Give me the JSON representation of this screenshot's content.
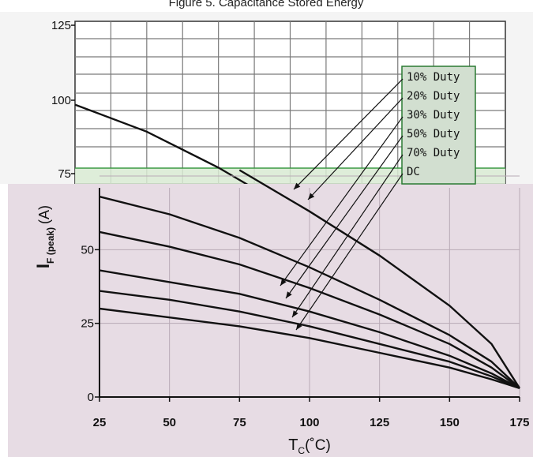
{
  "figure_title": "Figure 5. Capacitance Stored Energy",
  "chart_data": {
    "type": "line",
    "xlabel": {
      "main": "T",
      "sub": "C",
      "suffix": "(˚C)"
    },
    "ylabel": {
      "main": "I",
      "sub": "F (peak)",
      "suffix": "(A)"
    },
    "xlim": [
      25,
      175
    ],
    "ylim_lower_panel": [
      0,
      75
    ],
    "ylim_upper_panel": [
      62,
      125
    ],
    "x_ticks": [
      "25",
      "50",
      "75",
      "100",
      "125",
      "150",
      "175"
    ],
    "y_ticks_lower": [
      "0",
      "25",
      "50"
    ],
    "y_ticks_upper": [
      "125",
      "100",
      "75"
    ],
    "grid": true,
    "legend_position": "top-right",
    "colors": {
      "line": "#111111",
      "legend_bg": "#d2dfd0",
      "lower_bg": "#e7dce4",
      "upper_bg": "#f4f4f4",
      "legend_border": "#2a7a32"
    },
    "series": [
      {
        "name": "10% Duty",
        "x": [
          25,
          50,
          75,
          100,
          125,
          150,
          165,
          175
        ],
        "y": [
          98,
          89,
          77,
          63,
          48,
          31,
          18,
          3
        ]
      },
      {
        "name": "20% Duty",
        "x": [
          25,
          50,
          75,
          100,
          125,
          150,
          165,
          175
        ],
        "y": [
          68,
          62,
          54,
          44,
          33,
          21,
          12,
          3
        ]
      },
      {
        "name": "30% Duty",
        "x": [
          25,
          50,
          75,
          100,
          125,
          150,
          165,
          175
        ],
        "y": [
          56,
          51,
          45,
          37,
          28,
          18,
          10,
          3
        ]
      },
      {
        "name": "50% Duty",
        "x": [
          25,
          50,
          75,
          100,
          125,
          150,
          165,
          175
        ],
        "y": [
          43,
          39,
          35,
          29,
          22,
          14,
          8,
          3
        ]
      },
      {
        "name": "70% Duty",
        "x": [
          25,
          50,
          75,
          100,
          125,
          150,
          165,
          175
        ],
        "y": [
          36,
          33,
          29,
          24,
          18,
          12,
          7,
          3
        ]
      },
      {
        "name": "DC",
        "x": [
          25,
          50,
          75,
          100,
          125,
          150,
          165,
          175
        ],
        "y": [
          30,
          27,
          24,
          20,
          15,
          10,
          6,
          3
        ]
      }
    ]
  }
}
